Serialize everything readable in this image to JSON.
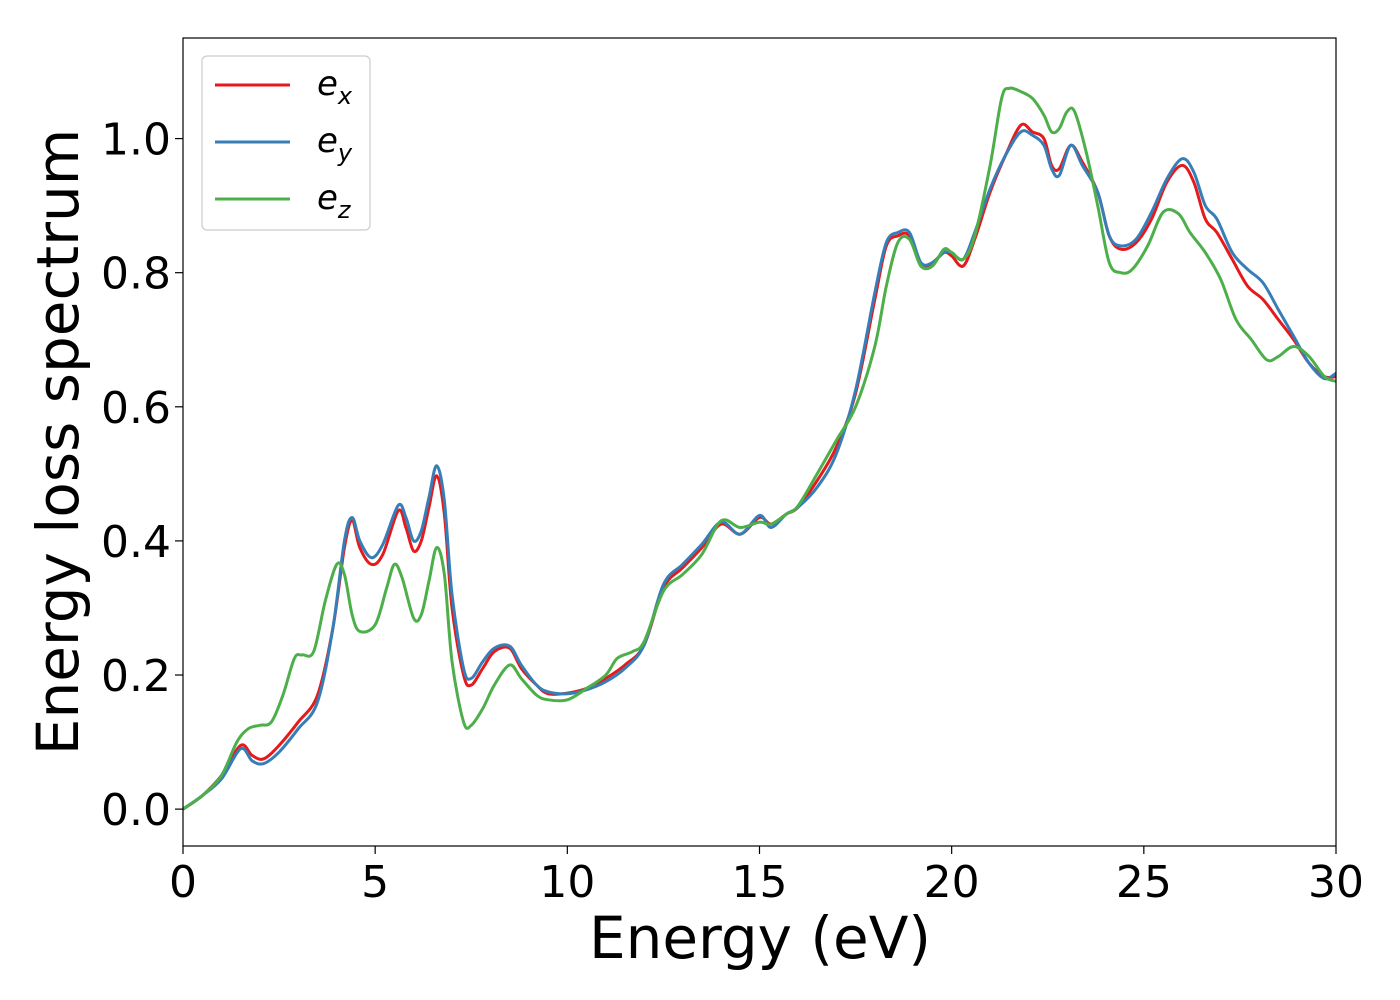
{
  "chart_data": {
    "type": "line",
    "xlabel": "Energy (eV)",
    "ylabel": "Energy loss spectrum",
    "xlim": [
      0,
      30
    ],
    "ylim": [
      -0.055,
      1.15
    ],
    "xticks": [
      0,
      5,
      10,
      15,
      20,
      25,
      30
    ],
    "xtick_labels": [
      "0",
      "5",
      "10",
      "15",
      "20",
      "25",
      "30"
    ],
    "yticks": [
      0.0,
      0.2,
      0.4,
      0.6,
      0.8,
      1.0
    ],
    "ytick_labels": [
      "0.0",
      "0.2",
      "0.4",
      "0.6",
      "0.8",
      "1.0"
    ],
    "grid": false,
    "legend_position": "top-left",
    "series": [
      {
        "name": "e_x",
        "legend_base": "e",
        "legend_sub": "x",
        "color": "#e41a1c",
        "points": [
          [
            0,
            0.0
          ],
          [
            0.5,
            0.02
          ],
          [
            1.0,
            0.05
          ],
          [
            1.5,
            0.095
          ],
          [
            1.8,
            0.08
          ],
          [
            2.1,
            0.075
          ],
          [
            2.5,
            0.095
          ],
          [
            3.0,
            0.13
          ],
          [
            3.5,
            0.17
          ],
          [
            3.9,
            0.27
          ],
          [
            4.2,
            0.39
          ],
          [
            4.4,
            0.43
          ],
          [
            4.6,
            0.39
          ],
          [
            4.9,
            0.365
          ],
          [
            5.2,
            0.38
          ],
          [
            5.6,
            0.445
          ],
          [
            5.8,
            0.42
          ],
          [
            6.0,
            0.385
          ],
          [
            6.2,
            0.4
          ],
          [
            6.4,
            0.45
          ],
          [
            6.6,
            0.497
          ],
          [
            6.8,
            0.44
          ],
          [
            7.0,
            0.3
          ],
          [
            7.3,
            0.2
          ],
          [
            7.5,
            0.185
          ],
          [
            7.8,
            0.21
          ],
          [
            8.1,
            0.235
          ],
          [
            8.5,
            0.24
          ],
          [
            8.8,
            0.21
          ],
          [
            9.2,
            0.185
          ],
          [
            9.5,
            0.172
          ],
          [
            10.0,
            0.173
          ],
          [
            10.5,
            0.18
          ],
          [
            11.0,
            0.195
          ],
          [
            11.5,
            0.215
          ],
          [
            12.0,
            0.245
          ],
          [
            12.5,
            0.33
          ],
          [
            13.0,
            0.36
          ],
          [
            13.5,
            0.39
          ],
          [
            14.0,
            0.425
          ],
          [
            14.5,
            0.41
          ],
          [
            15.0,
            0.435
          ],
          [
            15.3,
            0.425
          ],
          [
            15.7,
            0.44
          ],
          [
            16.0,
            0.45
          ],
          [
            16.5,
            0.49
          ],
          [
            17.0,
            0.54
          ],
          [
            17.5,
            0.62
          ],
          [
            18.0,
            0.76
          ],
          [
            18.3,
            0.84
          ],
          [
            18.6,
            0.855
          ],
          [
            18.9,
            0.855
          ],
          [
            19.2,
            0.81
          ],
          [
            19.5,
            0.815
          ],
          [
            19.8,
            0.83
          ],
          [
            20.0,
            0.825
          ],
          [
            20.3,
            0.81
          ],
          [
            20.6,
            0.85
          ],
          [
            21.0,
            0.92
          ],
          [
            21.4,
            0.975
          ],
          [
            21.8,
            1.02
          ],
          [
            22.1,
            1.01
          ],
          [
            22.4,
            1.0
          ],
          [
            22.6,
            0.96
          ],
          [
            22.8,
            0.955
          ],
          [
            23.1,
            0.99
          ],
          [
            23.4,
            0.965
          ],
          [
            23.8,
            0.92
          ],
          [
            24.1,
            0.855
          ],
          [
            24.4,
            0.835
          ],
          [
            24.8,
            0.845
          ],
          [
            25.2,
            0.88
          ],
          [
            25.6,
            0.935
          ],
          [
            26.0,
            0.96
          ],
          [
            26.3,
            0.935
          ],
          [
            26.6,
            0.88
          ],
          [
            26.9,
            0.86
          ],
          [
            27.3,
            0.82
          ],
          [
            27.7,
            0.78
          ],
          [
            28.1,
            0.76
          ],
          [
            28.5,
            0.73
          ],
          [
            28.9,
            0.7
          ],
          [
            29.3,
            0.665
          ],
          [
            29.7,
            0.645
          ],
          [
            30.0,
            0.645
          ]
        ]
      },
      {
        "name": "e_y",
        "legend_base": "e",
        "legend_sub": "y",
        "color": "#377eb8",
        "points": [
          [
            0,
            0.0
          ],
          [
            0.5,
            0.02
          ],
          [
            1.0,
            0.045
          ],
          [
            1.5,
            0.09
          ],
          [
            1.8,
            0.072
          ],
          [
            2.1,
            0.068
          ],
          [
            2.5,
            0.085
          ],
          [
            3.0,
            0.12
          ],
          [
            3.5,
            0.16
          ],
          [
            3.9,
            0.27
          ],
          [
            4.2,
            0.4
          ],
          [
            4.4,
            0.435
          ],
          [
            4.6,
            0.4
          ],
          [
            4.9,
            0.375
          ],
          [
            5.2,
            0.395
          ],
          [
            5.6,
            0.453
          ],
          [
            5.8,
            0.435
          ],
          [
            6.0,
            0.4
          ],
          [
            6.2,
            0.415
          ],
          [
            6.4,
            0.465
          ],
          [
            6.6,
            0.512
          ],
          [
            6.8,
            0.46
          ],
          [
            7.0,
            0.32
          ],
          [
            7.3,
            0.21
          ],
          [
            7.5,
            0.195
          ],
          [
            7.8,
            0.22
          ],
          [
            8.1,
            0.24
          ],
          [
            8.5,
            0.243
          ],
          [
            8.8,
            0.215
          ],
          [
            9.2,
            0.185
          ],
          [
            9.5,
            0.175
          ],
          [
            10.0,
            0.172
          ],
          [
            10.5,
            0.178
          ],
          [
            11.0,
            0.19
          ],
          [
            11.5,
            0.21
          ],
          [
            12.0,
            0.245
          ],
          [
            12.5,
            0.335
          ],
          [
            13.0,
            0.365
          ],
          [
            13.5,
            0.395
          ],
          [
            14.0,
            0.428
          ],
          [
            14.5,
            0.41
          ],
          [
            15.0,
            0.438
          ],
          [
            15.3,
            0.42
          ],
          [
            15.7,
            0.44
          ],
          [
            16.0,
            0.45
          ],
          [
            16.5,
            0.48
          ],
          [
            17.0,
            0.53
          ],
          [
            17.5,
            0.625
          ],
          [
            18.0,
            0.77
          ],
          [
            18.3,
            0.845
          ],
          [
            18.6,
            0.86
          ],
          [
            18.9,
            0.86
          ],
          [
            19.2,
            0.815
          ],
          [
            19.5,
            0.815
          ],
          [
            19.8,
            0.83
          ],
          [
            20.0,
            0.83
          ],
          [
            20.3,
            0.82
          ],
          [
            20.6,
            0.86
          ],
          [
            21.0,
            0.925
          ],
          [
            21.4,
            0.975
          ],
          [
            21.8,
            1.01
          ],
          [
            22.1,
            1.005
          ],
          [
            22.4,
            0.99
          ],
          [
            22.6,
            0.955
          ],
          [
            22.8,
            0.945
          ],
          [
            23.1,
            0.99
          ],
          [
            23.4,
            0.96
          ],
          [
            23.8,
            0.92
          ],
          [
            24.1,
            0.855
          ],
          [
            24.4,
            0.84
          ],
          [
            24.8,
            0.85
          ],
          [
            25.2,
            0.89
          ],
          [
            25.6,
            0.94
          ],
          [
            26.0,
            0.97
          ],
          [
            26.3,
            0.95
          ],
          [
            26.6,
            0.9
          ],
          [
            26.9,
            0.88
          ],
          [
            27.3,
            0.83
          ],
          [
            27.7,
            0.805
          ],
          [
            28.1,
            0.785
          ],
          [
            28.5,
            0.745
          ],
          [
            28.9,
            0.705
          ],
          [
            29.3,
            0.665
          ],
          [
            29.7,
            0.642
          ],
          [
            30.0,
            0.65
          ]
        ]
      },
      {
        "name": "e_z",
        "legend_base": "e",
        "legend_sub": "z",
        "color": "#4daf4a",
        "points": [
          [
            0,
            0.0
          ],
          [
            0.5,
            0.02
          ],
          [
            1.0,
            0.05
          ],
          [
            1.4,
            0.1
          ],
          [
            1.7,
            0.12
          ],
          [
            2.0,
            0.125
          ],
          [
            2.3,
            0.13
          ],
          [
            2.6,
            0.17
          ],
          [
            2.9,
            0.225
          ],
          [
            3.1,
            0.23
          ],
          [
            3.4,
            0.235
          ],
          [
            3.7,
            0.31
          ],
          [
            4.0,
            0.365
          ],
          [
            4.2,
            0.35
          ],
          [
            4.4,
            0.29
          ],
          [
            4.6,
            0.265
          ],
          [
            5.0,
            0.275
          ],
          [
            5.3,
            0.33
          ],
          [
            5.5,
            0.365
          ],
          [
            5.7,
            0.345
          ],
          [
            6.0,
            0.285
          ],
          [
            6.2,
            0.29
          ],
          [
            6.4,
            0.34
          ],
          [
            6.6,
            0.39
          ],
          [
            6.8,
            0.35
          ],
          [
            7.0,
            0.22
          ],
          [
            7.3,
            0.13
          ],
          [
            7.5,
            0.125
          ],
          [
            7.8,
            0.15
          ],
          [
            8.1,
            0.185
          ],
          [
            8.5,
            0.215
          ],
          [
            8.8,
            0.195
          ],
          [
            9.2,
            0.17
          ],
          [
            9.5,
            0.163
          ],
          [
            10.0,
            0.163
          ],
          [
            10.5,
            0.18
          ],
          [
            11.0,
            0.2
          ],
          [
            11.3,
            0.225
          ],
          [
            11.7,
            0.235
          ],
          [
            12.0,
            0.25
          ],
          [
            12.5,
            0.325
          ],
          [
            13.0,
            0.35
          ],
          [
            13.5,
            0.38
          ],
          [
            14.0,
            0.43
          ],
          [
            14.5,
            0.42
          ],
          [
            15.0,
            0.428
          ],
          [
            15.3,
            0.425
          ],
          [
            15.7,
            0.44
          ],
          [
            16.0,
            0.452
          ],
          [
            16.5,
            0.5
          ],
          [
            17.0,
            0.55
          ],
          [
            17.5,
            0.6
          ],
          [
            18.0,
            0.69
          ],
          [
            18.3,
            0.78
          ],
          [
            18.6,
            0.845
          ],
          [
            18.9,
            0.85
          ],
          [
            19.2,
            0.81
          ],
          [
            19.5,
            0.81
          ],
          [
            19.8,
            0.835
          ],
          [
            20.0,
            0.83
          ],
          [
            20.3,
            0.82
          ],
          [
            20.6,
            0.855
          ],
          [
            21.0,
            0.96
          ],
          [
            21.3,
            1.06
          ],
          [
            21.5,
            1.075
          ],
          [
            21.8,
            1.07
          ],
          [
            22.1,
            1.06
          ],
          [
            22.4,
            1.035
          ],
          [
            22.6,
            1.01
          ],
          [
            22.8,
            1.015
          ],
          [
            23.0,
            1.04
          ],
          [
            23.2,
            1.04
          ],
          [
            23.5,
            0.98
          ],
          [
            23.8,
            0.9
          ],
          [
            24.1,
            0.815
          ],
          [
            24.4,
            0.8
          ],
          [
            24.7,
            0.805
          ],
          [
            25.1,
            0.84
          ],
          [
            25.5,
            0.89
          ],
          [
            25.9,
            0.888
          ],
          [
            26.2,
            0.86
          ],
          [
            26.6,
            0.83
          ],
          [
            27.0,
            0.79
          ],
          [
            27.4,
            0.73
          ],
          [
            27.8,
            0.7
          ],
          [
            28.2,
            0.67
          ],
          [
            28.5,
            0.675
          ],
          [
            28.9,
            0.69
          ],
          [
            29.3,
            0.675
          ],
          [
            29.7,
            0.645
          ],
          [
            30.0,
            0.638
          ]
        ]
      }
    ]
  }
}
